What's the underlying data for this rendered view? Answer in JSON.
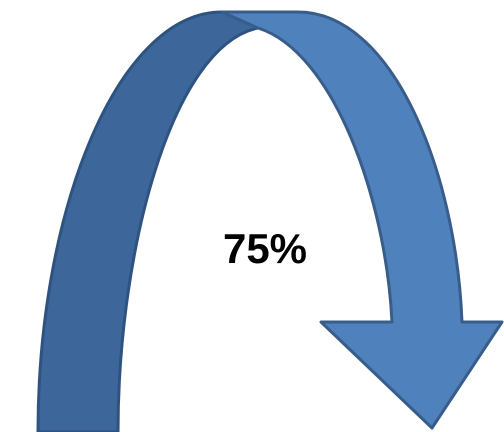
{
  "label": "75%"
}
